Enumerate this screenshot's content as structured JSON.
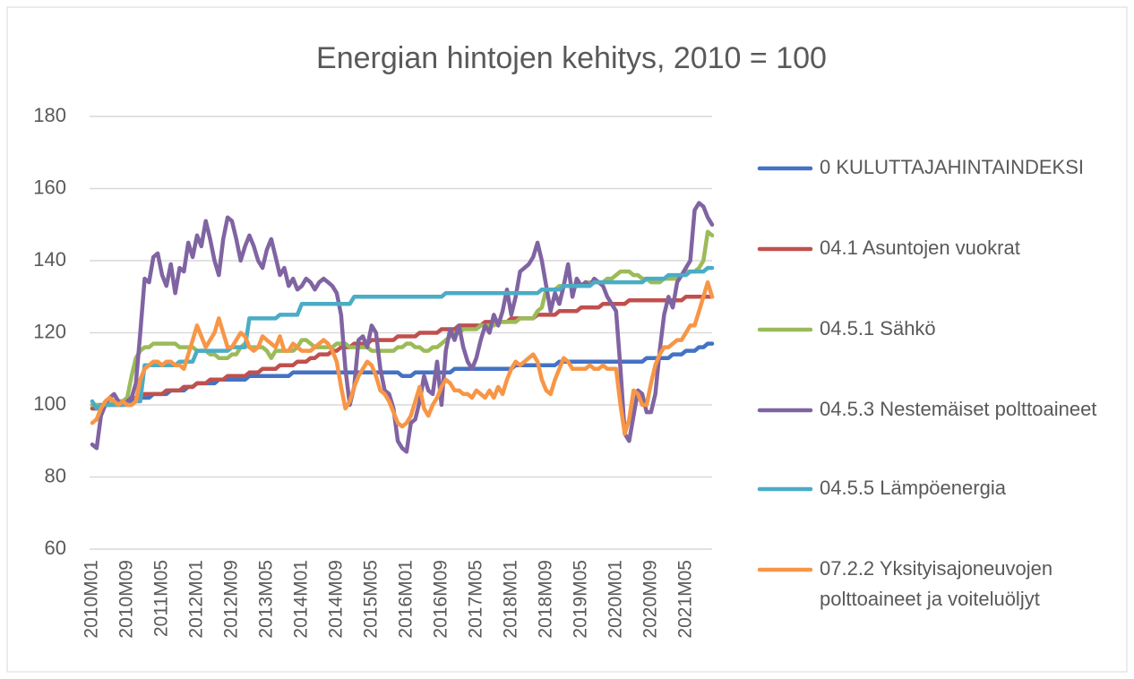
{
  "chart_data": {
    "type": "line",
    "title": "Energian hintojen kehitys, 2010 = 100",
    "categories": [
      "2010M01",
      null,
      null,
      null,
      null,
      null,
      null,
      null,
      "2010M09",
      null,
      null,
      null,
      null,
      null,
      null,
      null,
      "2011M05",
      null,
      null,
      null,
      null,
      null,
      null,
      null,
      "2012M01",
      null,
      null,
      null,
      null,
      null,
      null,
      null,
      "2012M09",
      null,
      null,
      null,
      null,
      null,
      null,
      null,
      "2013M05",
      null,
      null,
      null,
      null,
      null,
      null,
      null,
      "2014M01",
      null,
      null,
      null,
      null,
      null,
      null,
      null,
      "2014M09",
      null,
      null,
      null,
      null,
      null,
      null,
      null,
      "2015M05",
      null,
      null,
      null,
      null,
      null,
      null,
      null,
      "2016M01",
      null,
      null,
      null,
      null,
      null,
      null,
      null,
      "2016M09",
      null,
      null,
      null,
      null,
      null,
      null,
      null,
      "2017M05",
      null,
      null,
      null,
      null,
      null,
      null,
      null,
      "2018M01",
      null,
      null,
      null,
      null,
      null,
      null,
      null,
      "2018M09",
      null,
      null,
      null,
      null,
      null,
      null,
      null,
      "2019M05",
      null,
      null,
      null,
      null,
      null,
      null,
      null,
      "2020M01",
      null,
      null,
      null,
      null,
      null,
      null,
      null,
      "2020M09",
      null,
      null,
      null,
      null,
      null,
      null,
      null,
      "2021M05",
      null,
      null,
      null,
      null,
      null,
      null
    ],
    "series": [
      {
        "name": "0 KULUTTAJAHINTAINDEKSI",
        "color": "#4472c4",
        "values": [
          99,
          99,
          99,
          100,
          100,
          100,
          100,
          100,
          101,
          101,
          101,
          102,
          102,
          102,
          103,
          103,
          103,
          103,
          104,
          104,
          104,
          104,
          105,
          105,
          106,
          106,
          106,
          106,
          106,
          107,
          107,
          107,
          107,
          107,
          107,
          107,
          108,
          108,
          108,
          108,
          108,
          108,
          108,
          108,
          108,
          108,
          109,
          109,
          109,
          109,
          109,
          109,
          109,
          109,
          109,
          109,
          109,
          109,
          109,
          109,
          109,
          109,
          109,
          109,
          109,
          109,
          109,
          109,
          109,
          109,
          109,
          108,
          108,
          108,
          109,
          109,
          109,
          109,
          109,
          109,
          109,
          109,
          109,
          110,
          110,
          110,
          110,
          110,
          110,
          110,
          110,
          110,
          110,
          110,
          110,
          110,
          110,
          111,
          111,
          111,
          111,
          111,
          111,
          111,
          111,
          111,
          111,
          112,
          112,
          112,
          112,
          112,
          112,
          112,
          112,
          112,
          112,
          112,
          112,
          112,
          112,
          112,
          112,
          112,
          112,
          112,
          112,
          113,
          113,
          113,
          113,
          113,
          113,
          114,
          114,
          114,
          115,
          115,
          115,
          116,
          116,
          117,
          117
        ]
      },
      {
        "name": "04.1 Asuntojen vuokrat",
        "color": "#c0504d",
        "values": [
          99,
          99,
          100,
          100,
          100,
          101,
          101,
          101,
          102,
          102,
          102,
          102,
          103,
          103,
          103,
          103,
          103,
          104,
          104,
          104,
          104,
          105,
          105,
          105,
          106,
          106,
          106,
          107,
          107,
          107,
          107,
          108,
          108,
          108,
          108,
          108,
          109,
          109,
          109,
          110,
          110,
          110,
          110,
          111,
          111,
          111,
          111,
          112,
          112,
          112,
          113,
          113,
          114,
          114,
          114,
          115,
          115,
          116,
          116,
          116,
          117,
          117,
          117,
          117,
          118,
          118,
          118,
          118,
          118,
          118,
          119,
          119,
          119,
          119,
          119,
          120,
          120,
          120,
          120,
          120,
          121,
          121,
          121,
          121,
          122,
          122,
          122,
          122,
          122,
          122,
          123,
          123,
          123,
          123,
          123,
          123,
          124,
          124,
          124,
          124,
          124,
          124,
          125,
          125,
          125,
          125,
          125,
          126,
          126,
          126,
          126,
          126,
          127,
          127,
          127,
          127,
          127,
          128,
          128,
          128,
          128,
          128,
          128,
          129,
          129,
          129,
          129,
          129,
          129,
          129,
          129,
          129,
          129,
          129,
          129,
          129,
          130,
          130,
          130,
          130,
          130,
          130,
          130
        ]
      },
      {
        "name": "04.5.1 Sähkö",
        "color": "#9bbb59",
        "values": [
          100,
          100,
          100,
          100,
          100,
          101,
          101,
          101,
          102,
          108,
          113,
          115,
          116,
          116,
          117,
          117,
          117,
          117,
          117,
          117,
          116,
          116,
          116,
          116,
          115,
          115,
          115,
          114,
          114,
          113,
          113,
          113,
          114,
          114,
          116,
          117,
          116,
          116,
          116,
          116,
          115,
          113,
          115,
          115,
          115,
          115,
          115,
          116,
          118,
          118,
          117,
          116,
          116,
          116,
          116,
          116,
          117,
          117,
          117,
          116,
          116,
          116,
          116,
          116,
          115,
          115,
          115,
          115,
          115,
          115,
          116,
          116,
          117,
          117,
          116,
          116,
          115,
          115,
          116,
          116,
          117,
          118,
          119,
          120,
          120,
          121,
          121,
          121,
          121,
          122,
          122,
          122,
          122,
          123,
          123,
          123,
          123,
          123,
          124,
          124,
          124,
          124,
          126,
          127,
          132,
          132,
          132,
          133,
          133,
          133,
          133,
          133,
          133,
          134,
          134,
          134,
          134,
          134,
          135,
          135,
          136,
          137,
          137,
          137,
          136,
          136,
          135,
          135,
          134,
          134,
          134,
          135,
          135,
          135,
          135,
          136,
          137,
          137,
          137,
          138,
          140,
          148,
          147
        ]
      },
      {
        "name": "04.5.3 Nestemäiset polttoaineet",
        "color": "#8064a2",
        "values": [
          89,
          88,
          97,
          100,
          102,
          103,
          101,
          100,
          101,
          102,
          106,
          120,
          135,
          134,
          141,
          142,
          136,
          133,
          139,
          131,
          138,
          137,
          145,
          141,
          147,
          144,
          151,
          146,
          140,
          136,
          146,
          152,
          151,
          146,
          140,
          144,
          147,
          144,
          140,
          138,
          143,
          146,
          141,
          136,
          138,
          133,
          135,
          132,
          133,
          135,
          134,
          132,
          134,
          135,
          134,
          133,
          131,
          125,
          110,
          100,
          105,
          118,
          119,
          116,
          122,
          120,
          110,
          104,
          103,
          99,
          90,
          88,
          87,
          95,
          96,
          101,
          108,
          104,
          103,
          112,
          100,
          115,
          121,
          118,
          122,
          116,
          112,
          110,
          113,
          118,
          122,
          120,
          125,
          122,
          126,
          132,
          125,
          130,
          137,
          138,
          139,
          141,
          145,
          140,
          133,
          126,
          131,
          128,
          133,
          139,
          130,
          135,
          133,
          134,
          133,
          135,
          134,
          133,
          130,
          128,
          126,
          110,
          92,
          90,
          97,
          104,
          103,
          98,
          98,
          103,
          115,
          125,
          130,
          127,
          134,
          136,
          138,
          140,
          154,
          156,
          155,
          152,
          150
        ]
      },
      {
        "name": "04.5.5 Lämpöenergia",
        "color": "#4bacc6",
        "values": [
          101,
          99,
          100,
          100,
          100,
          100,
          100,
          100,
          100,
          100,
          101,
          101,
          111,
          111,
          111,
          111,
          111,
          111,
          111,
          111,
          112,
          112,
          112,
          112,
          115,
          115,
          115,
          115,
          115,
          115,
          115,
          115,
          116,
          116,
          116,
          116,
          124,
          124,
          124,
          124,
          124,
          124,
          124,
          125,
          125,
          125,
          125,
          125,
          128,
          128,
          128,
          128,
          128,
          128,
          128,
          128,
          128,
          128,
          128,
          128,
          130,
          130,
          130,
          130,
          130,
          130,
          130,
          130,
          130,
          130,
          130,
          130,
          130,
          130,
          130,
          130,
          130,
          130,
          130,
          130,
          130,
          131,
          131,
          131,
          131,
          131,
          131,
          131,
          131,
          131,
          131,
          131,
          131,
          131,
          131,
          131,
          131,
          131,
          131,
          131,
          131,
          131,
          131,
          132,
          132,
          132,
          132,
          132,
          133,
          133,
          133,
          133,
          133,
          133,
          133,
          134,
          134,
          134,
          134,
          134,
          134,
          134,
          134,
          134,
          134,
          134,
          134,
          135,
          135,
          135,
          135,
          135,
          136,
          136,
          136,
          136,
          136,
          137,
          137,
          137,
          137,
          138,
          138
        ]
      },
      {
        "name": "07.2.2 Yksityisajoneuvojen polttoaineet ja voiteluöljyt",
        "color": "#f79646",
        "values": [
          95,
          96,
          99,
          101,
          102,
          101,
          100,
          101,
          100,
          100,
          101,
          107,
          110,
          111,
          112,
          112,
          111,
          112,
          112,
          111,
          111,
          110,
          114,
          118,
          122,
          119,
          116,
          118,
          120,
          124,
          120,
          116,
          116,
          118,
          120,
          119,
          116,
          115,
          116,
          119,
          118,
          117,
          116,
          119,
          115,
          115,
          117,
          116,
          115,
          115,
          115,
          116,
          117,
          118,
          117,
          115,
          112,
          105,
          99,
          101,
          105,
          108,
          110,
          112,
          111,
          108,
          104,
          103,
          101,
          98,
          95,
          94,
          95,
          97,
          101,
          105,
          99,
          97,
          100,
          102,
          105,
          107,
          106,
          104,
          104,
          103,
          103,
          102,
          104,
          103,
          102,
          104,
          102,
          105,
          103,
          107,
          110,
          112,
          111,
          112,
          113,
          114,
          112,
          107,
          104,
          103,
          107,
          110,
          113,
          112,
          110,
          110,
          110,
          110,
          111,
          110,
          110,
          111,
          110,
          110,
          110,
          100,
          92,
          96,
          104,
          103,
          100,
          100,
          106,
          111,
          114,
          116,
          116,
          117,
          118,
          118,
          120,
          122,
          122,
          126,
          130,
          134,
          130
        ]
      }
    ],
    "ylim": [
      60,
      180
    ],
    "yticks": [
      60,
      80,
      100,
      120,
      140,
      160,
      180
    ],
    "grid": true,
    "legend": "right"
  }
}
